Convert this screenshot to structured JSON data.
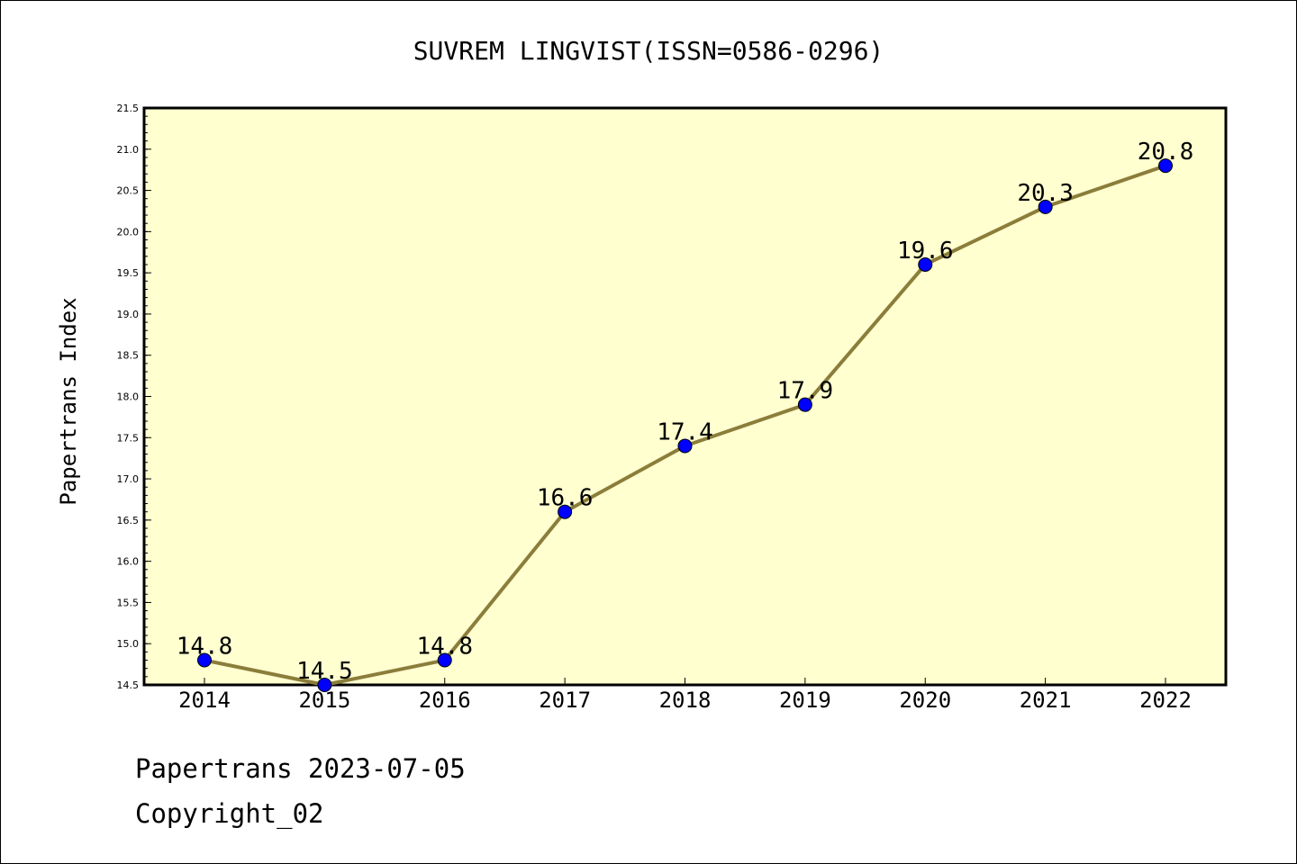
{
  "chart_data": {
    "type": "line",
    "title": "SUVREM LINGVIST(ISSN=0586-0296)",
    "xlabel": "",
    "ylabel": "Papertrans Index",
    "x": [
      "2014",
      "2015",
      "2016",
      "2017",
      "2018",
      "2019",
      "2020",
      "2021",
      "2022"
    ],
    "values": [
      14.8,
      14.5,
      14.8,
      16.6,
      17.4,
      17.9,
      19.6,
      20.3,
      20.8
    ],
    "data_labels": [
      "14.8",
      "14.5",
      "14.8",
      "16.6",
      "17.4",
      "17.9",
      "19.6",
      "20.3",
      "20.8"
    ],
    "ylim": [
      14.5,
      21.5
    ],
    "yticks": [
      "14.5",
      "15.0",
      "15.5",
      "16.0",
      "16.5",
      "17.0",
      "17.5",
      "18.0",
      "18.5",
      "19.0",
      "19.5",
      "20.0",
      "20.5",
      "21.0",
      "21.5"
    ],
    "grid": false,
    "legend": "none",
    "colors": {
      "plot_background": "#ffffd0",
      "line": "#8b7d3a",
      "marker": "#0000ff"
    }
  },
  "footer": {
    "date_line": "Papertrans 2023-07-05",
    "copyright": "Copyright_02"
  }
}
